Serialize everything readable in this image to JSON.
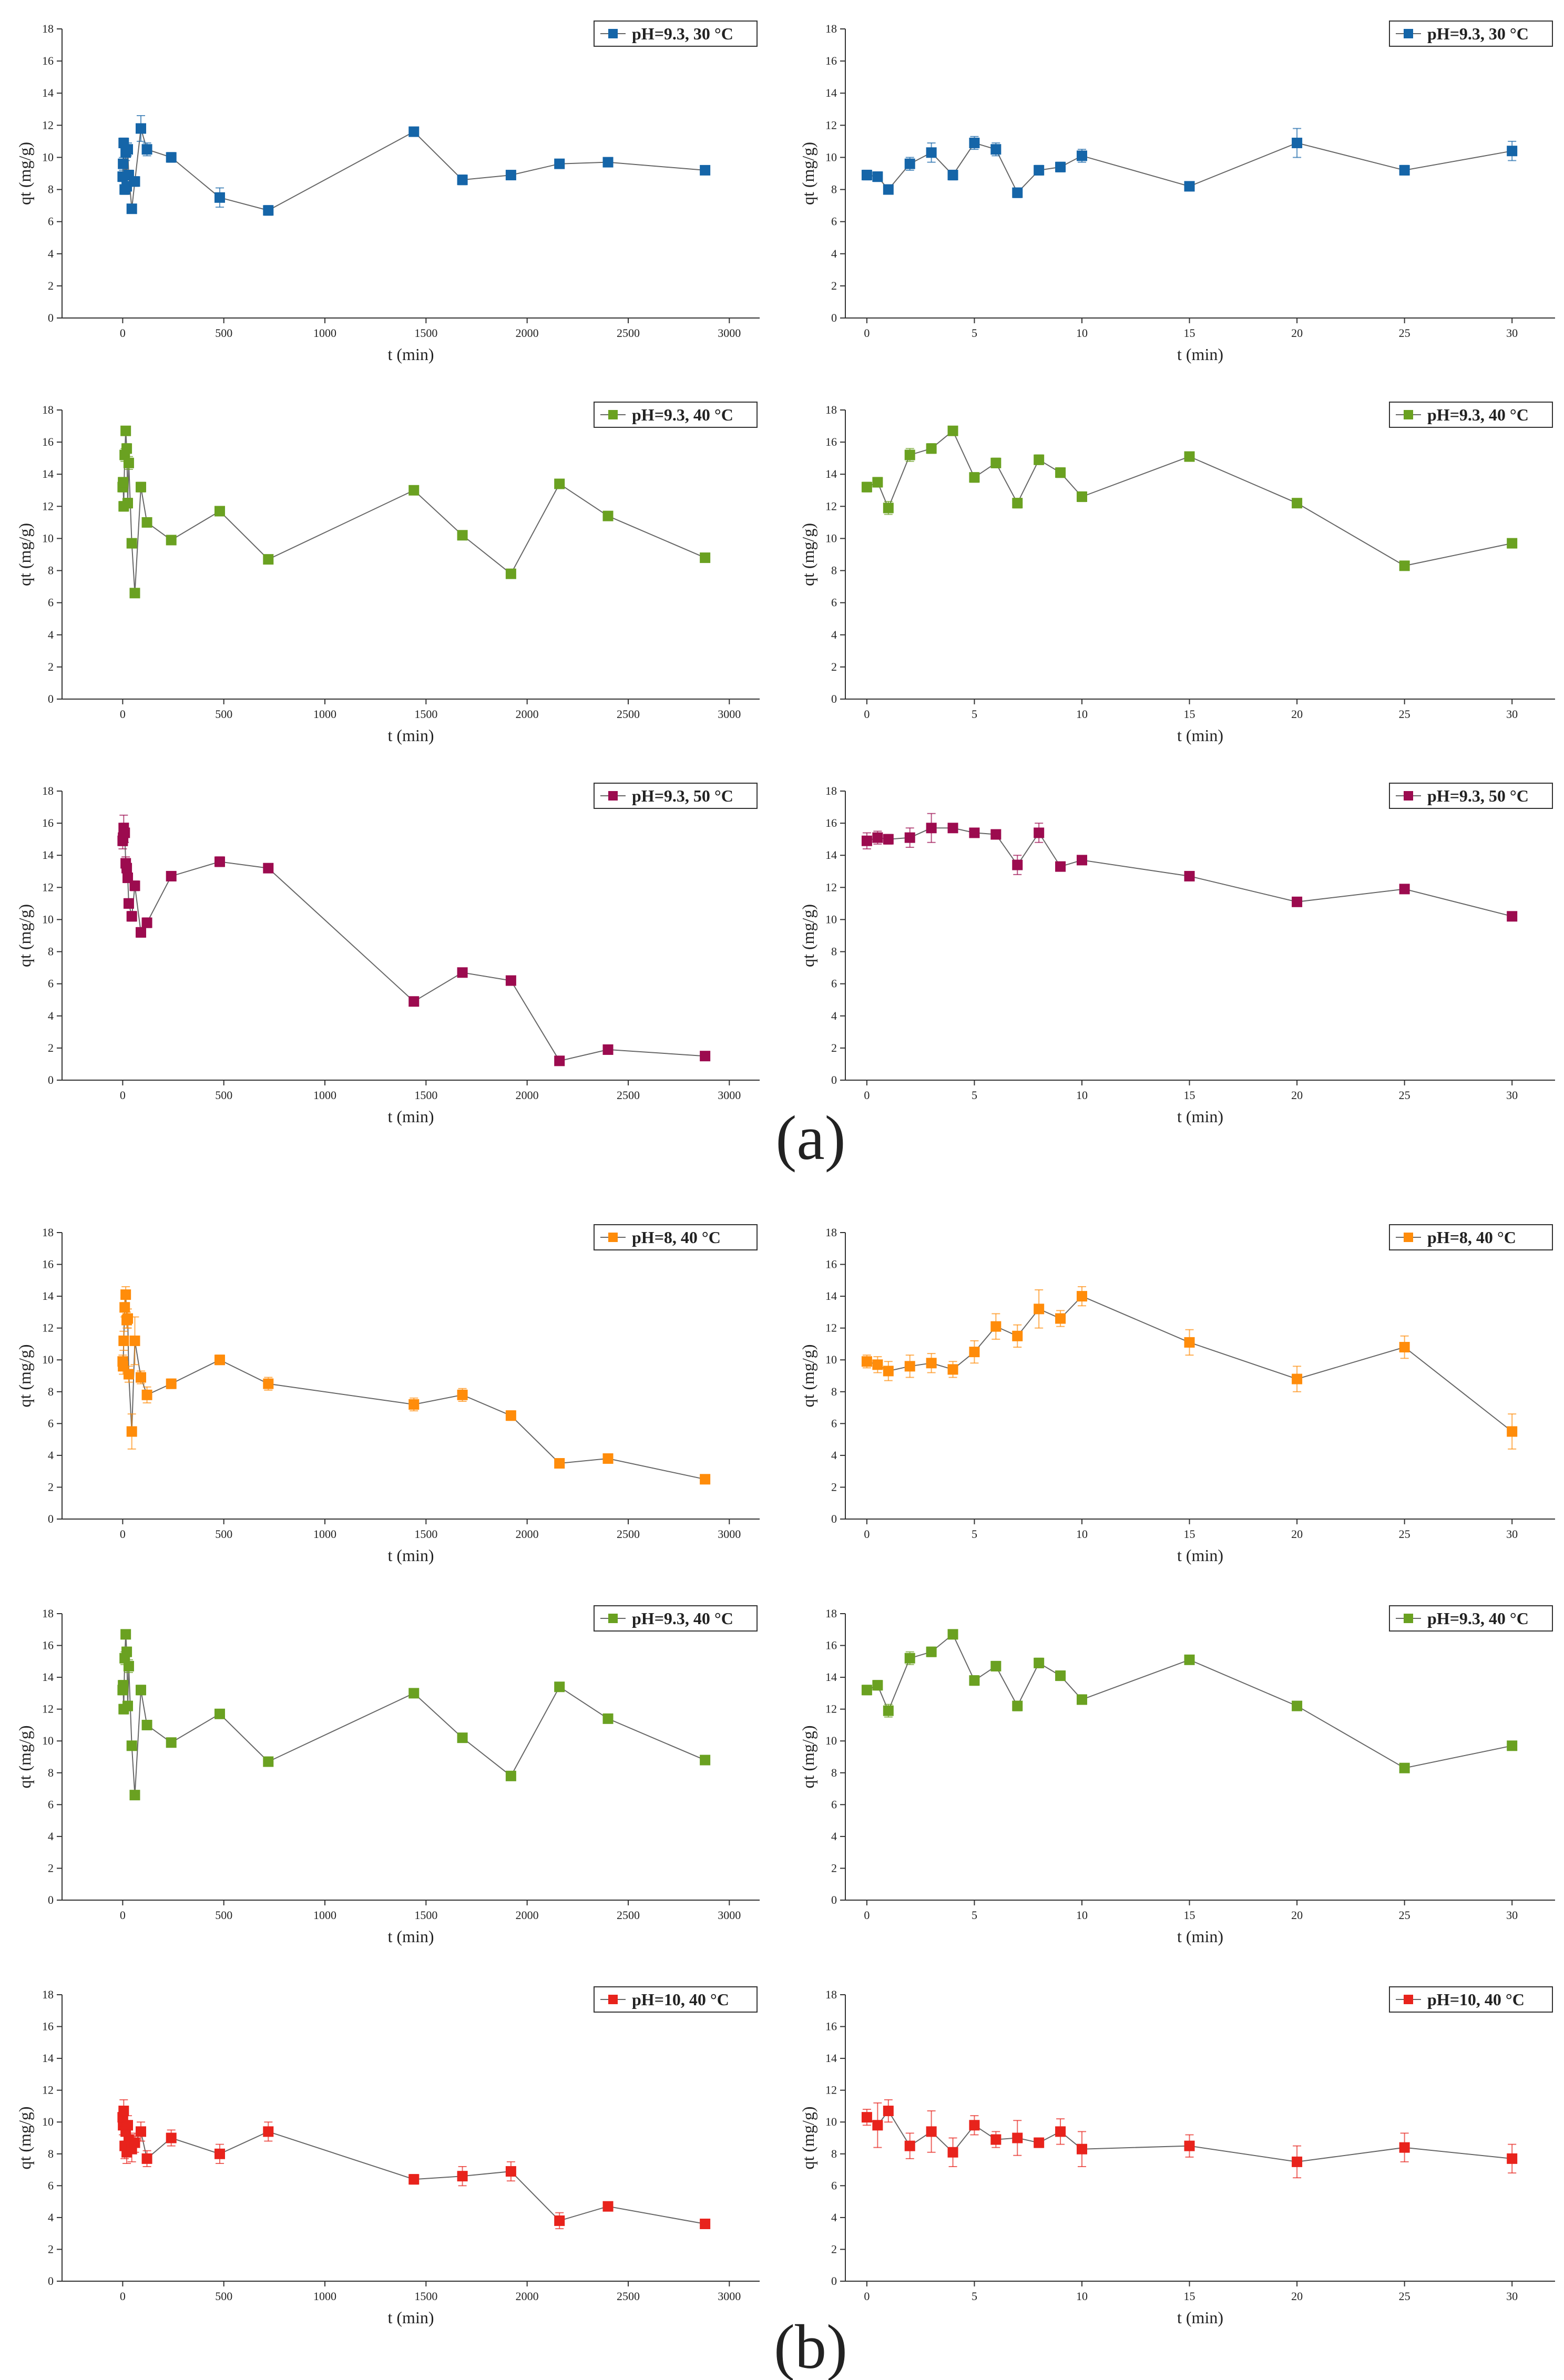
{
  "figure_labels": [
    "(a)",
    "(b)"
  ],
  "chart_data": [
    {
      "id": "a-left-30",
      "type": "line",
      "legend": "pH=9.3, 30 °C",
      "color": "#1565a8",
      "xlabel": "t (min)",
      "ylabel": "qt (mg/g)",
      "xlim": [
        -300,
        3150
      ],
      "ylim": [
        0,
        18
      ],
      "xticks": [
        0,
        500,
        1000,
        1500,
        2000,
        2500,
        3000
      ],
      "yticks": [
        0,
        2,
        4,
        6,
        8,
        10,
        12,
        14,
        16,
        18
      ],
      "x": [
        0,
        2,
        5,
        10,
        15,
        20,
        25,
        30,
        45,
        60,
        90,
        120,
        240,
        480,
        720,
        1440,
        1680,
        1920,
        2160,
        2400,
        2880
      ],
      "y": [
        8.8,
        9.6,
        10.9,
        8.0,
        10.3,
        8.2,
        10.5,
        8.9,
        6.8,
        8.5,
        11.8,
        10.5,
        10.0,
        7.5,
        6.7,
        11.6,
        8.6,
        8.9,
        9.6,
        9.7,
        9.2
      ],
      "err": [
        0.3,
        0.4,
        0.3,
        0.3,
        0.5,
        0.3,
        0.4,
        0.3,
        0.2,
        0.3,
        0.8,
        0.4,
        0.3,
        0.6,
        0.3,
        0.2,
        0.3,
        0.2,
        0.2,
        0.2,
        0.2
      ]
    },
    {
      "id": "a-right-30",
      "type": "line",
      "legend": "pH=9.3, 30 °C",
      "color": "#1565a8",
      "xlabel": "t (min)",
      "ylabel": "qt (mg/g)",
      "xlim": [
        -1,
        32
      ],
      "ylim": [
        0,
        18
      ],
      "xticks": [
        0,
        5,
        10,
        15,
        20,
        25,
        30
      ],
      "yticks": [
        0,
        2,
        4,
        6,
        8,
        10,
        12,
        14,
        16,
        18
      ],
      "x": [
        0,
        0.5,
        1,
        2,
        3,
        4,
        5,
        6,
        7,
        8,
        9,
        10,
        15,
        20,
        25,
        30
      ],
      "y": [
        8.9,
        8.8,
        8.0,
        9.6,
        10.3,
        8.9,
        10.9,
        10.5,
        7.8,
        9.2,
        9.4,
        10.1,
        8.2,
        10.9,
        9.2,
        10.4
      ],
      "err": [
        0.3,
        0.3,
        0.2,
        0.4,
        0.6,
        0.3,
        0.4,
        0.4,
        0.3,
        0.3,
        0.3,
        0.4,
        0.2,
        0.9,
        0.3,
        0.6
      ]
    },
    {
      "id": "a-left-40",
      "type": "line",
      "legend": "pH=9.3, 40 °C",
      "color": "#6aa121",
      "xlabel": "t (min)",
      "ylabel": "qt (mg/g)",
      "xlim": [
        -300,
        3150
      ],
      "ylim": [
        0,
        18
      ],
      "xticks": [
        0,
        500,
        1000,
        1500,
        2000,
        2500,
        3000
      ],
      "yticks": [
        0,
        2,
        4,
        6,
        8,
        10,
        12,
        14,
        16,
        18
      ],
      "x": [
        0,
        2,
        5,
        10,
        15,
        20,
        25,
        30,
        45,
        60,
        90,
        120,
        240,
        480,
        720,
        1440,
        1680,
        1920,
        2160,
        2400,
        2880
      ],
      "y": [
        13.2,
        13.5,
        12.0,
        15.2,
        16.7,
        15.6,
        12.2,
        14.7,
        9.7,
        6.6,
        13.2,
        11.0,
        9.9,
        11.7,
        8.7,
        13.0,
        10.2,
        7.8,
        13.4,
        11.4,
        8.8
      ],
      "err": [
        0.3,
        0.3,
        0.3,
        0.4,
        0.2,
        0.3,
        0.3,
        0.4,
        0.2,
        0.2,
        0.3,
        0.2,
        0.2,
        0.2,
        0.2,
        0.2,
        0.2,
        0.2,
        0.2,
        0.2,
        0.2
      ]
    },
    {
      "id": "a-right-40",
      "type": "line",
      "legend": "pH=9.3, 40 °C",
      "color": "#6aa121",
      "xlabel": "t (min)",
      "ylabel": "qt (mg/g)",
      "xlim": [
        -1,
        32
      ],
      "ylim": [
        0,
        18
      ],
      "xticks": [
        0,
        5,
        10,
        15,
        20,
        25,
        30
      ],
      "yticks": [
        0,
        2,
        4,
        6,
        8,
        10,
        12,
        14,
        16,
        18
      ],
      "x": [
        0,
        0.5,
        1,
        2,
        3,
        4,
        5,
        6,
        7,
        8,
        9,
        10,
        15,
        20,
        25,
        30
      ],
      "y": [
        13.2,
        13.5,
        11.9,
        15.2,
        15.6,
        16.7,
        13.8,
        14.7,
        12.2,
        14.9,
        14.1,
        12.6,
        15.1,
        12.2,
        8.3,
        9.7
      ],
      "err": [
        0.3,
        0.3,
        0.4,
        0.4,
        0.3,
        0.2,
        0.3,
        0.3,
        0.3,
        0.3,
        0.3,
        0.3,
        0.2,
        0.2,
        0.2,
        0.2
      ]
    },
    {
      "id": "a-left-50",
      "type": "line",
      "legend": "pH=9.3, 50 °C",
      "color": "#9c0b4f",
      "xlabel": "t (min)",
      "ylabel": "qt (mg/g)",
      "xlim": [
        -300,
        3150
      ],
      "ylim": [
        0,
        18
      ],
      "xticks": [
        0,
        500,
        1000,
        1500,
        2000,
        2500,
        3000
      ],
      "yticks": [
        0,
        2,
        4,
        6,
        8,
        10,
        12,
        14,
        16,
        18
      ],
      "x": [
        0,
        2,
        5,
        10,
        15,
        20,
        25,
        30,
        45,
        60,
        90,
        120,
        240,
        480,
        720,
        1440,
        1680,
        1920,
        2160,
        2400,
        2880
      ],
      "y": [
        14.9,
        15.1,
        15.7,
        15.4,
        13.5,
        13.2,
        12.6,
        11.0,
        10.2,
        12.1,
        9.2,
        9.8,
        12.7,
        13.6,
        13.2,
        4.9,
        6.7,
        6.2,
        1.2,
        1.9,
        1.5
      ],
      "err": [
        0.5,
        0.5,
        0.8,
        0.6,
        0.4,
        0.3,
        0.3,
        0.3,
        0.3,
        0.3,
        0.3,
        0.3,
        0.2,
        0.3,
        0.2,
        0.2,
        0.2,
        0.2,
        0.2,
        0.2,
        0.2
      ]
    },
    {
      "id": "a-right-50",
      "type": "line",
      "legend": "pH=9.3, 50 °C",
      "color": "#9c0b4f",
      "xlabel": "t (min)",
      "ylabel": "qt (mg/g)",
      "xlim": [
        -1,
        32
      ],
      "ylim": [
        0,
        18
      ],
      "xticks": [
        0,
        5,
        10,
        15,
        20,
        25,
        30
      ],
      "yticks": [
        0,
        2,
        4,
        6,
        8,
        10,
        12,
        14,
        16,
        18
      ],
      "x": [
        0,
        0.5,
        1,
        2,
        3,
        4,
        5,
        6,
        7,
        8,
        9,
        10,
        15,
        20,
        25,
        30
      ],
      "y": [
        14.9,
        15.1,
        15.0,
        15.1,
        15.7,
        15.7,
        15.4,
        15.3,
        13.4,
        15.4,
        13.3,
        13.7,
        12.7,
        11.1,
        11.9,
        10.2
      ],
      "err": [
        0.5,
        0.4,
        0.3,
        0.6,
        0.9,
        0.2,
        0.2,
        0.2,
        0.6,
        0.6,
        0.2,
        0.2,
        0.2,
        0.2,
        0.2,
        0.2
      ]
    },
    {
      "id": "b-left-8",
      "type": "line",
      "legend": "pH=8, 40 °C",
      "color": "#ff8c0a",
      "xlabel": "t (min)",
      "ylabel": "qt (mg/g)",
      "xlim": [
        -300,
        3150
      ],
      "ylim": [
        0,
        18
      ],
      "xticks": [
        0,
        500,
        1000,
        1500,
        2000,
        2500,
        3000
      ],
      "yticks": [
        0,
        2,
        4,
        6,
        8,
        10,
        12,
        14,
        16,
        18
      ],
      "x": [
        0,
        2,
        5,
        10,
        15,
        20,
        25,
        30,
        45,
        60,
        90,
        120,
        240,
        480,
        720,
        1440,
        1680,
        1920,
        2160,
        2400,
        2880
      ],
      "y": [
        9.9,
        9.6,
        11.2,
        13.3,
        14.1,
        12.5,
        12.6,
        9.1,
        5.5,
        11.2,
        8.9,
        7.8,
        8.5,
        10.0,
        8.5,
        7.2,
        7.8,
        6.5,
        3.5,
        3.8,
        2.5
      ],
      "err": [
        0.4,
        0.5,
        0.6,
        0.6,
        0.5,
        0.5,
        0.6,
        0.5,
        1.1,
        1.5,
        0.4,
        0.5,
        0.3,
        0.3,
        0.4,
        0.4,
        0.4,
        0.3,
        0.2,
        0.2,
        0.2
      ]
    },
    {
      "id": "b-right-8",
      "type": "line",
      "legend": "pH=8, 40 °C",
      "color": "#ff8c0a",
      "xlabel": "t (min)",
      "ylabel": "qt (mg/g)",
      "xlim": [
        -1,
        32
      ],
      "ylim": [
        0,
        18
      ],
      "xticks": [
        0,
        5,
        10,
        15,
        20,
        25,
        30
      ],
      "yticks": [
        0,
        2,
        4,
        6,
        8,
        10,
        12,
        14,
        16,
        18
      ],
      "x": [
        0,
        0.5,
        1,
        2,
        3,
        4,
        5,
        6,
        7,
        8,
        9,
        10,
        15,
        20,
        25,
        30
      ],
      "y": [
        9.9,
        9.7,
        9.3,
        9.6,
        9.8,
        9.4,
        10.5,
        12.1,
        11.5,
        13.2,
        12.6,
        14.0,
        11.1,
        8.8,
        10.8,
        5.5
      ],
      "err": [
        0.4,
        0.5,
        0.6,
        0.7,
        0.6,
        0.5,
        0.7,
        0.8,
        0.7,
        1.2,
        0.5,
        0.6,
        0.8,
        0.8,
        0.7,
        1.1
      ]
    },
    {
      "id": "b-left-9.3",
      "type": "line",
      "legend": "pH=9.3, 40 °C",
      "color": "#6aa121",
      "xlabel": "t (min)",
      "ylabel": "qt (mg/g)",
      "xlim": [
        -300,
        3150
      ],
      "ylim": [
        0,
        18
      ],
      "xticks": [
        0,
        500,
        1000,
        1500,
        2000,
        2500,
        3000
      ],
      "yticks": [
        0,
        2,
        4,
        6,
        8,
        10,
        12,
        14,
        16,
        18
      ],
      "x": [
        0,
        2,
        5,
        10,
        15,
        20,
        25,
        30,
        45,
        60,
        90,
        120,
        240,
        480,
        720,
        1440,
        1680,
        1920,
        2160,
        2400,
        2880
      ],
      "y": [
        13.2,
        13.5,
        12.0,
        15.2,
        16.7,
        15.6,
        12.2,
        14.7,
        9.7,
        6.6,
        13.2,
        11.0,
        9.9,
        11.7,
        8.7,
        13.0,
        10.2,
        7.8,
        13.4,
        11.4,
        8.8
      ],
      "err": [
        0.3,
        0.3,
        0.3,
        0.4,
        0.2,
        0.3,
        0.3,
        0.4,
        0.2,
        0.2,
        0.3,
        0.2,
        0.2,
        0.2,
        0.2,
        0.2,
        0.2,
        0.2,
        0.2,
        0.2,
        0.2
      ]
    },
    {
      "id": "b-right-9.3",
      "type": "line",
      "legend": "pH=9.3, 40 °C",
      "color": "#6aa121",
      "xlabel": "t (min)",
      "ylabel": "qt (mg/g)",
      "xlim": [
        -1,
        32
      ],
      "ylim": [
        0,
        18
      ],
      "xticks": [
        0,
        5,
        10,
        15,
        20,
        25,
        30
      ],
      "yticks": [
        0,
        2,
        4,
        6,
        8,
        10,
        12,
        14,
        16,
        18
      ],
      "x": [
        0,
        0.5,
        1,
        2,
        3,
        4,
        5,
        6,
        7,
        8,
        9,
        10,
        15,
        20,
        25,
        30
      ],
      "y": [
        13.2,
        13.5,
        11.9,
        15.2,
        15.6,
        16.7,
        13.8,
        14.7,
        12.2,
        14.9,
        14.1,
        12.6,
        15.1,
        12.2,
        8.3,
        9.7
      ],
      "err": [
        0.3,
        0.3,
        0.4,
        0.4,
        0.3,
        0.2,
        0.3,
        0.3,
        0.3,
        0.3,
        0.3,
        0.3,
        0.2,
        0.2,
        0.2,
        0.2
      ]
    },
    {
      "id": "b-left-10",
      "type": "line",
      "legend": "pH=10, 40 °C",
      "color": "#e8231c",
      "xlabel": "t (min)",
      "ylabel": "qt (mg/g)",
      "xlim": [
        -300,
        3150
      ],
      "ylim": [
        0,
        18
      ],
      "xticks": [
        0,
        500,
        1000,
        1500,
        2000,
        2500,
        3000
      ],
      "yticks": [
        0,
        2,
        4,
        6,
        8,
        10,
        12,
        14,
        16,
        18
      ],
      "x": [
        0,
        2,
        5,
        10,
        15,
        20,
        25,
        30,
        45,
        60,
        90,
        120,
        240,
        480,
        720,
        1440,
        1680,
        1920,
        2160,
        2400,
        2880
      ],
      "y": [
        10.3,
        9.8,
        10.7,
        8.5,
        9.4,
        8.1,
        9.8,
        8.9,
        8.3,
        8.7,
        9.4,
        7.7,
        9.0,
        8.0,
        9.4,
        6.4,
        6.6,
        6.9,
        3.8,
        4.7,
        3.6
      ],
      "err": [
        0.5,
        0.6,
        0.7,
        0.8,
        0.6,
        0.7,
        0.6,
        0.6,
        0.8,
        0.6,
        0.6,
        0.5,
        0.5,
        0.6,
        0.6,
        0.3,
        0.6,
        0.6,
        0.5,
        0.2,
        0.2
      ]
    },
    {
      "id": "b-right-10",
      "type": "line",
      "legend": "pH=10, 40 °C",
      "color": "#e8231c",
      "xlabel": "t (min)",
      "ylabel": "qt (mg/g)",
      "xlim": [
        -1,
        32
      ],
      "ylim": [
        0,
        18
      ],
      "xticks": [
        0,
        5,
        10,
        15,
        20,
        25,
        30
      ],
      "yticks": [
        0,
        2,
        4,
        6,
        8,
        10,
        12,
        14,
        16,
        18
      ],
      "x": [
        0,
        0.5,
        1,
        2,
        3,
        4,
        5,
        6,
        7,
        8,
        9,
        10,
        15,
        20,
        25,
        30
      ],
      "y": [
        10.3,
        9.8,
        10.7,
        8.5,
        9.4,
        8.1,
        9.8,
        8.9,
        9.0,
        8.7,
        9.4,
        8.3,
        8.5,
        7.5,
        8.4,
        7.7
      ],
      "err": [
        0.5,
        1.4,
        0.7,
        0.8,
        1.3,
        0.9,
        0.6,
        0.5,
        1.1,
        0.3,
        0.8,
        1.1,
        0.7,
        1.0,
        0.9,
        0.9
      ]
    }
  ]
}
